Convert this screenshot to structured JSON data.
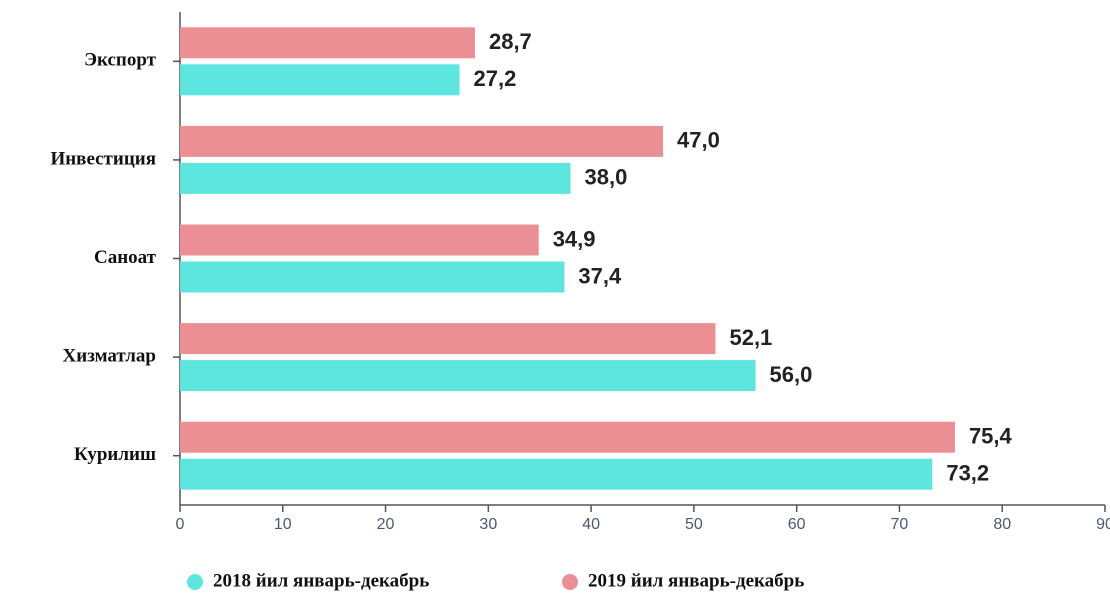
{
  "chart_data": {
    "type": "barh",
    "categories": [
      "Экспорт",
      "Инвестиция",
      "Саноат",
      "Хизматлар",
      "Курилиш"
    ],
    "series": [
      {
        "name": "2018 йил январь-декабрь",
        "color": "#5de6df",
        "values": [
          27.2,
          38.0,
          37.4,
          56.0,
          73.2
        ],
        "value_labels": [
          "27,2",
          "38,0",
          "37,4",
          "56,0",
          "73,2"
        ]
      },
      {
        "name": "2019 йил январь-декабрь",
        "color": "#ec8f95",
        "values": [
          28.7,
          47.0,
          34.9,
          52.1,
          75.4
        ],
        "value_labels": [
          "28,7",
          "47,0",
          "34,9",
          "52,1",
          "75,4"
        ]
      }
    ],
    "xlim": [
      0,
      90
    ],
    "xticks": [
      0,
      10,
      20,
      30,
      40,
      50,
      60,
      70,
      80,
      90
    ]
  }
}
